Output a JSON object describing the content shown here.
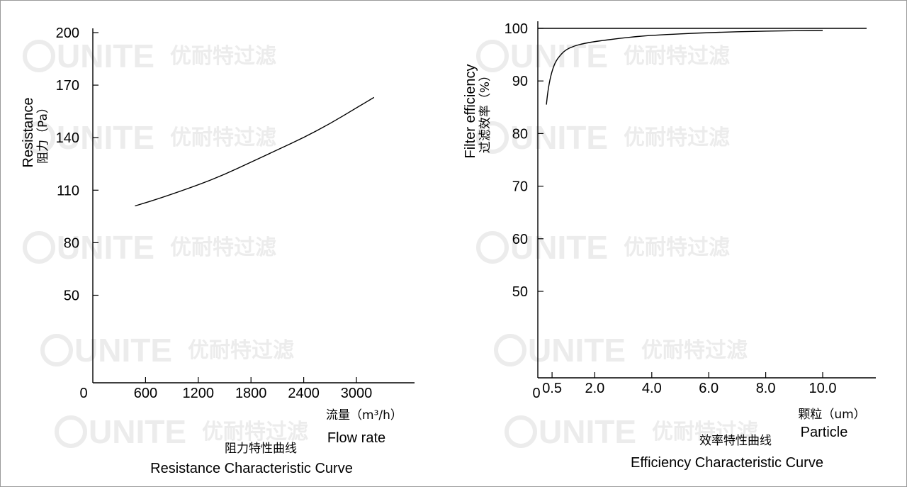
{
  "watermark": {
    "brand": "UNITE",
    "cn": "优耐特过滤"
  },
  "chart_data": [
    {
      "type": "line",
      "title": "Resistance Characteristic Curve",
      "title_cn": "阻力特性曲线",
      "xlabel": "Flow rate",
      "xlabel_cn": "流量（m³/h）",
      "ylabel": "Resistance",
      "ylabel_cn": "阻力（Pa）",
      "origin_label": "0",
      "xticks": [
        600,
        1200,
        1800,
        2400,
        3000
      ],
      "yticks": [
        50,
        80,
        110,
        140,
        170,
        200
      ],
      "xlim": [
        0,
        3900
      ],
      "ylim": [
        0,
        200
      ],
      "grid": false,
      "series": [
        {
          "x": [
            480,
            800,
            1200,
            1500,
            1800,
            2100,
            2400,
            2700,
            3000,
            3200
          ],
          "y": [
            101,
            106,
            113,
            119,
            126,
            133,
            140,
            148,
            157,
            163
          ]
        }
      ]
    },
    {
      "type": "line",
      "title": "Efficiency Characteristic Curve",
      "title_cn": "效率特性曲线",
      "xlabel": "Particle",
      "xlabel_cn": "颗粒（um）",
      "ylabel": "Filter efficiency",
      "ylabel_cn": "过滤效率（%）",
      "origin_label": "0",
      "xticks": [
        0.5,
        2.0,
        4.0,
        6.0,
        8.0,
        10.0
      ],
      "yticks": [
        50,
        60,
        70,
        80,
        90,
        100
      ],
      "xlim": [
        0,
        12
      ],
      "ylim": [
        40,
        100
      ],
      "grid": false,
      "reference_line": 100,
      "series": [
        {
          "x": [
            0.3,
            0.35,
            0.45,
            0.6,
            0.8,
            1.0,
            1.3,
            1.6,
            2.0,
            3.0,
            4.0,
            6.0,
            8.0,
            10.0
          ],
          "y": [
            85.5,
            88,
            91,
            93.5,
            95,
            96,
            96.7,
            97.1,
            97.5,
            98.2,
            98.7,
            99.2,
            99.5,
            99.6
          ]
        }
      ]
    }
  ]
}
